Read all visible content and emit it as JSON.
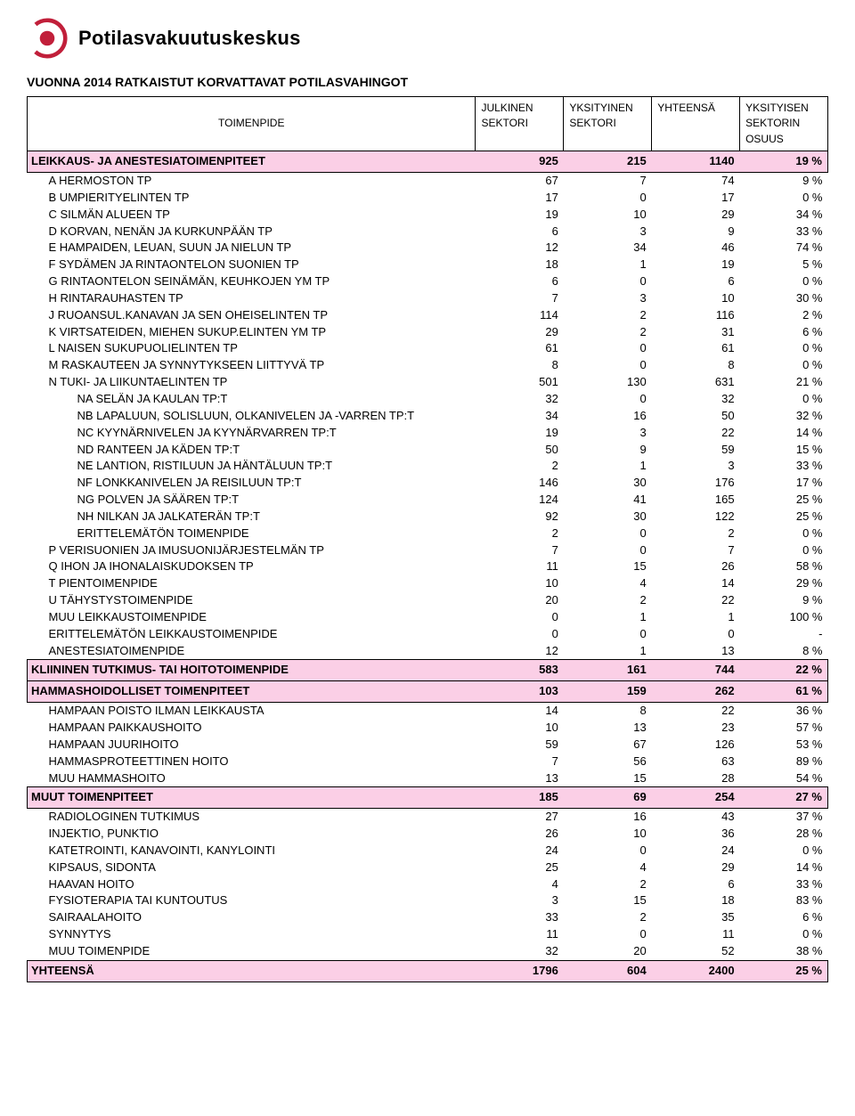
{
  "logo": {
    "text": "Potilasvakuutuskeskus",
    "ring_color": "#c11f3a",
    "inner_color": "#c11f3a"
  },
  "title": "VUONNA 2014 RATKAISTUT KORVATTAVAT POTILASVAHINGOT",
  "columns": {
    "c0": "TOIMENPIDE",
    "c1_a": "JULKINEN",
    "c1_b": "SEKTORI",
    "c2_a": "YKSITYINEN",
    "c2_b": "SEKTORI",
    "c3": "YHTEENSÄ",
    "c4_a": "YKSITYISEN",
    "c4_b": "SEKTORIN",
    "c4_c": "OSUUS"
  },
  "colors": {
    "band": "#fbcfe6",
    "border": "#000000",
    "text": "#000000",
    "background": "#ffffff"
  },
  "rows": [
    {
      "type": "header",
      "label": "LEIKKAUS- JA ANESTESIATOIMENPITEET",
      "v1": "925",
      "v2": "215",
      "v3": "1140",
      "v4": "19 %"
    },
    {
      "indent": 1,
      "label": "A HERMOSTON TP",
      "v1": "67",
      "v2": "7",
      "v3": "74",
      "v4": "9 %"
    },
    {
      "indent": 1,
      "label": "B UMPIERITYELINTEN TP",
      "v1": "17",
      "v2": "0",
      "v3": "17",
      "v4": "0 %"
    },
    {
      "indent": 1,
      "label": "C SILMÄN ALUEEN TP",
      "v1": "19",
      "v2": "10",
      "v3": "29",
      "v4": "34 %"
    },
    {
      "indent": 1,
      "label": "D KORVAN, NENÄN JA KURKUNPÄÄN TP",
      "v1": "6",
      "v2": "3",
      "v3": "9",
      "v4": "33 %"
    },
    {
      "indent": 1,
      "label": "E HAMPAIDEN, LEUAN, SUUN JA NIELUN TP",
      "v1": "12",
      "v2": "34",
      "v3": "46",
      "v4": "74 %"
    },
    {
      "indent": 1,
      "label": "F SYDÄMEN JA RINTAONTELON SUONIEN TP",
      "v1": "18",
      "v2": "1",
      "v3": "19",
      "v4": "5 %"
    },
    {
      "indent": 1,
      "label": "G RINTAONTELON SEINÄMÄN, KEUHKOJEN YM TP",
      "v1": "6",
      "v2": "0",
      "v3": "6",
      "v4": "0 %"
    },
    {
      "indent": 1,
      "label": "H RINTARAUHASTEN TP",
      "v1": "7",
      "v2": "3",
      "v3": "10",
      "v4": "30 %"
    },
    {
      "indent": 1,
      "label": "J RUOANSUL.KANAVAN JA SEN OHEISELINTEN TP",
      "v1": "114",
      "v2": "2",
      "v3": "116",
      "v4": "2 %"
    },
    {
      "indent": 1,
      "label": "K VIRTSATEIDEN, MIEHEN SUKUP.ELINTEN YM TP",
      "v1": "29",
      "v2": "2",
      "v3": "31",
      "v4": "6 %"
    },
    {
      "indent": 1,
      "label": "L NAISEN SUKUPUOLIELINTEN TP",
      "v1": "61",
      "v2": "0",
      "v3": "61",
      "v4": "0 %"
    },
    {
      "indent": 1,
      "label": "M RASKAUTEEN JA SYNNYTYKSEEN LIITTYVÄ TP",
      "v1": "8",
      "v2": "0",
      "v3": "8",
      "v4": "0 %"
    },
    {
      "indent": 1,
      "label": "N TUKI- JA LIIKUNTAELINTEN TP",
      "v1": "501",
      "v2": "130",
      "v3": "631",
      "v4": "21 %"
    },
    {
      "indent": 2,
      "label": "NA SELÄN JA KAULAN TP:T",
      "v1": "32",
      "v2": "0",
      "v3": "32",
      "v4": "0 %"
    },
    {
      "indent": 2,
      "label": "NB LAPALUUN, SOLISLUUN, OLKANIVELEN JA -VARREN TP:T",
      "v1": "34",
      "v2": "16",
      "v3": "50",
      "v4": "32 %"
    },
    {
      "indent": 2,
      "label": "NC KYYNÄRNIVELEN JA KYYNÄRVARREN TP:T",
      "v1": "19",
      "v2": "3",
      "v3": "22",
      "v4": "14 %"
    },
    {
      "indent": 2,
      "label": "ND RANTEEN JA KÄDEN TP:T",
      "v1": "50",
      "v2": "9",
      "v3": "59",
      "v4": "15 %"
    },
    {
      "indent": 2,
      "label": "NE LANTION, RISTILUUN JA HÄNTÄLUUN TP:T",
      "v1": "2",
      "v2": "1",
      "v3": "3",
      "v4": "33 %"
    },
    {
      "indent": 2,
      "label": "NF LONKKANIVELEN JA REISILUUN TP:T",
      "v1": "146",
      "v2": "30",
      "v3": "176",
      "v4": "17 %"
    },
    {
      "indent": 2,
      "label": "NG POLVEN JA SÄÄREN TP:T",
      "v1": "124",
      "v2": "41",
      "v3": "165",
      "v4": "25 %"
    },
    {
      "indent": 2,
      "label": "NH NILKAN JA JALKATERÄN TP:T",
      "v1": "92",
      "v2": "30",
      "v3": "122",
      "v4": "25 %"
    },
    {
      "indent": 2,
      "label": "ERITTELEMÄTÖN TOIMENPIDE",
      "v1": "2",
      "v2": "0",
      "v3": "2",
      "v4": "0 %"
    },
    {
      "indent": 1,
      "label": "P VERISUONIEN JA IMUSUONIJÄRJESTELMÄN TP",
      "v1": "7",
      "v2": "0",
      "v3": "7",
      "v4": "0 %"
    },
    {
      "indent": 1,
      "label": "Q IHON JA IHONALAISKUDOKSEN TP",
      "v1": "11",
      "v2": "15",
      "v3": "26",
      "v4": "58 %"
    },
    {
      "indent": 1,
      "label": "T PIENTOIMENPIDE",
      "v1": "10",
      "v2": "4",
      "v3": "14",
      "v4": "29 %"
    },
    {
      "indent": 1,
      "label": "U TÄHYSTYSTOIMENPIDE",
      "v1": "20",
      "v2": "2",
      "v3": "22",
      "v4": "9 %"
    },
    {
      "indent": 1,
      "label": "MUU LEIKKAUSTOIMENPIDE",
      "v1": "0",
      "v2": "1",
      "v3": "1",
      "v4": "100 %"
    },
    {
      "indent": 1,
      "label": "ERITTELEMÄTÖN LEIKKAUSTOIMENPIDE",
      "v1": "0",
      "v2": "0",
      "v3": "0",
      "v4": "-"
    },
    {
      "indent": 1,
      "label": "ANESTESIATOIMENPIDE",
      "v1": "12",
      "v2": "1",
      "v3": "13",
      "v4": "8 %"
    },
    {
      "type": "header",
      "label": "KLIININEN TUTKIMUS- TAI HOITOTOIMENPIDE",
      "v1": "583",
      "v2": "161",
      "v3": "744",
      "v4": "22 %"
    },
    {
      "type": "header",
      "label": "HAMMASHOIDOLLISET TOIMENPITEET",
      "v1": "103",
      "v2": "159",
      "v3": "262",
      "v4": "61 %"
    },
    {
      "indent": 1,
      "label": "HAMPAAN POISTO ILMAN LEIKKAUSTA",
      "v1": "14",
      "v2": "8",
      "v3": "22",
      "v4": "36 %"
    },
    {
      "indent": 1,
      "label": "HAMPAAN PAIKKAUSHOITO",
      "v1": "10",
      "v2": "13",
      "v3": "23",
      "v4": "57 %"
    },
    {
      "indent": 1,
      "label": "HAMPAAN JUURIHOITO",
      "v1": "59",
      "v2": "67",
      "v3": "126",
      "v4": "53 %"
    },
    {
      "indent": 1,
      "label": "HAMMASPROTEETTINEN HOITO",
      "v1": "7",
      "v2": "56",
      "v3": "63",
      "v4": "89 %"
    },
    {
      "indent": 1,
      "label": "MUU HAMMASHOITO",
      "v1": "13",
      "v2": "15",
      "v3": "28",
      "v4": "54 %"
    },
    {
      "type": "header",
      "label": "MUUT TOIMENPITEET",
      "v1": "185",
      "v2": "69",
      "v3": "254",
      "v4": "27 %"
    },
    {
      "indent": 1,
      "label": "RADIOLOGINEN TUTKIMUS",
      "v1": "27",
      "v2": "16",
      "v3": "43",
      "v4": "37 %"
    },
    {
      "indent": 1,
      "label": "INJEKTIO, PUNKTIO",
      "v1": "26",
      "v2": "10",
      "v3": "36",
      "v4": "28 %"
    },
    {
      "indent": 1,
      "label": "KATETROINTI, KANAVOINTI, KANYLOINTI",
      "v1": "24",
      "v2": "0",
      "v3": "24",
      "v4": "0 %"
    },
    {
      "indent": 1,
      "label": "KIPSAUS, SIDONTA",
      "v1": "25",
      "v2": "4",
      "v3": "29",
      "v4": "14 %"
    },
    {
      "indent": 1,
      "label": "HAAVAN HOITO",
      "v1": "4",
      "v2": "2",
      "v3": "6",
      "v4": "33 %"
    },
    {
      "indent": 1,
      "label": "FYSIOTERAPIA TAI KUNTOUTUS",
      "v1": "3",
      "v2": "15",
      "v3": "18",
      "v4": "83 %"
    },
    {
      "indent": 1,
      "label": "SAIRAALAHOITO",
      "v1": "33",
      "v2": "2",
      "v3": "35",
      "v4": "6 %"
    },
    {
      "indent": 1,
      "label": "SYNNYTYS",
      "v1": "11",
      "v2": "0",
      "v3": "11",
      "v4": "0 %"
    },
    {
      "indent": 1,
      "label": "MUU TOIMENPIDE",
      "v1": "32",
      "v2": "20",
      "v3": "52",
      "v4": "38 %"
    },
    {
      "type": "grandtotal",
      "label": "YHTEENSÄ",
      "v1": "1796",
      "v2": "604",
      "v3": "2400",
      "v4": "25 %"
    }
  ]
}
